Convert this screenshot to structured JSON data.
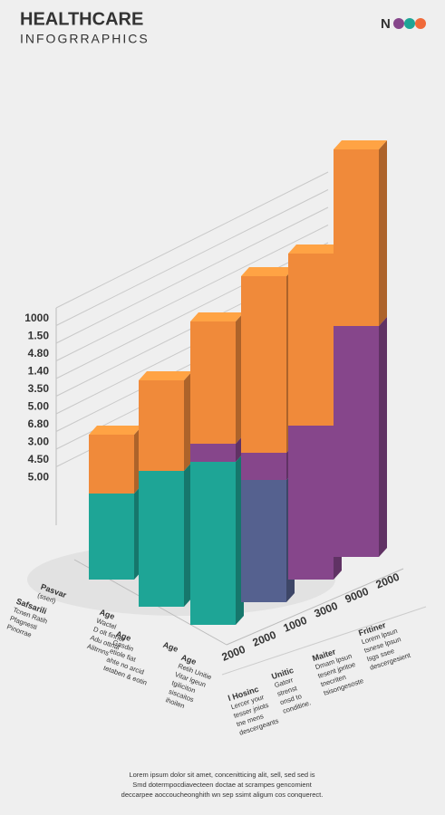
{
  "header": {
    "title": "HEALTHCARE",
    "subtitle": "INFOGRRAPHICS",
    "logo": "N"
  },
  "chart_data": {
    "type": "bar",
    "stacked": true,
    "y_axis_labels": [
      "1000",
      "1.50",
      "4.80",
      "1.40",
      "3.50",
      "5.00",
      "6.80",
      "3.00",
      "4.50",
      "5.00"
    ],
    "categories": [
      "2000",
      "2000",
      "1000",
      "3000",
      "9000",
      "2000"
    ],
    "ylim": [
      0,
      500
    ],
    "grid": true,
    "series": [
      {
        "color": "#1ea596",
        "values": [
          95,
          150,
          180,
          null,
          null,
          null
        ]
      },
      {
        "color": "#55618f",
        "values": [
          null,
          null,
          null,
          135,
          null,
          null
        ]
      },
      {
        "color": "#86468b",
        "values": [
          null,
          null,
          20,
          30,
          170,
          255
        ]
      },
      {
        "color": "#f08a3a",
        "values": [
          65,
          100,
          135,
          195,
          190,
          195
        ]
      }
    ]
  },
  "notes_left": [
    {
      "color": "#333333",
      "lines": [
        "Pasvar",
        "(sserl)"
      ]
    },
    {
      "color": "#f08a3a",
      "lines": [
        "Safsarili",
        "Tcnen Ratih",
        "Pfagnesti",
        "Pinorrae"
      ]
    },
    {
      "color": "#333333",
      "lines": [
        "Age",
        "Wactel",
        "D olt finner",
        "Adu ottnal",
        "Alitrnns"
      ]
    },
    {
      "color": "#1ea596",
      "lines": [
        "Age",
        "Gasdin",
        "etiole fiat",
        "ahte no arcid",
        "tetaben & eotin"
      ]
    },
    {
      "color": "#333333",
      "lines": [
        "Age"
      ]
    },
    {
      "color": "#f08a3a",
      "lines": [
        "Age",
        "Retih Unitie",
        "Vitar lgeun",
        "tgiliciton",
        "siscaitos",
        "ihoilen"
      ]
    }
  ],
  "notes_right": [
    {
      "color": "#1ea596",
      "lines": [
        "l Hosinc",
        "Lercer your",
        "tesser jniots",
        "tne mens",
        "descergeants"
      ]
    },
    {
      "color": "#f08a3a",
      "lines": [
        "Unitic",
        "Gatorr",
        "strenst",
        "onsd to",
        "conditine."
      ]
    },
    {
      "color": "#86468b",
      "lines": [
        "Maiter",
        "Dmam lpsun",
        "tesent jpritoe",
        "tnecriten",
        "tsisongesoste"
      ]
    },
    {
      "color": "#1ea596",
      "lines": [
        "Fritiner",
        "Lorem lpsun",
        "tsnese lpsun",
        "lsgs ssee",
        "descergesient"
      ]
    }
  ],
  "footer": [
    "Lorem ipsum dolor sit amet, concenitticing alit, sell, sed sed is",
    "Smd dotermpocdiavecteen doctae at scrampes gencomient",
    "deccarpee aoccoucheonghith wn sep ssimt aligum cos conquerect."
  ]
}
